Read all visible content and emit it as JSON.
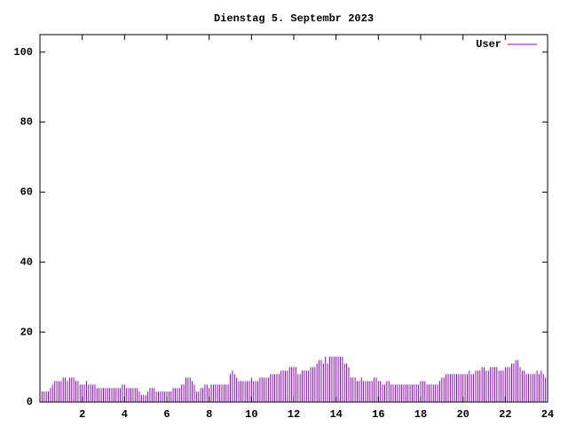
{
  "chart_data": {
    "type": "impulses",
    "title": "Dienstag 5. Septembr 2023",
    "xlim": [
      0,
      24
    ],
    "xticks": [
      2,
      4,
      6,
      8,
      10,
      12,
      14,
      16,
      18,
      20,
      22,
      24
    ],
    "ylim": [
      0,
      105
    ],
    "yticks": [
      0,
      20,
      40,
      60,
      80,
      100
    ],
    "legend": "top-right",
    "series": [
      {
        "name": "User",
        "color": "#9400d3",
        "x": [
          0,
          0.1,
          0.2,
          0.3,
          0.4,
          0.5,
          0.6,
          0.7,
          0.8,
          0.9,
          1,
          1.1,
          1.2,
          1.3,
          1.4,
          1.5,
          1.6,
          1.7,
          1.8,
          1.9,
          2,
          2.1,
          2.2,
          2.3,
          2.4,
          2.5,
          2.6,
          2.7,
          2.8,
          2.9,
          3,
          3.1,
          3.2,
          3.3,
          3.4,
          3.5,
          3.6,
          3.7,
          3.8,
          3.9,
          4,
          4.1,
          4.2,
          4.3,
          4.4,
          4.5,
          4.6,
          4.7,
          4.8,
          4.9,
          5,
          5.1,
          5.2,
          5.3,
          5.4,
          5.5,
          5.6,
          5.7,
          5.8,
          5.9,
          6,
          6.1,
          6.2,
          6.3,
          6.4,
          6.5,
          6.6,
          6.7,
          6.8,
          6.9,
          7,
          7.1,
          7.2,
          7.3,
          7.4,
          7.5,
          7.6,
          7.7,
          7.8,
          7.9,
          8,
          8.1,
          8.2,
          8.3,
          8.4,
          8.5,
          8.6,
          8.7,
          8.8,
          8.9,
          9,
          9.1,
          9.2,
          9.3,
          9.4,
          9.5,
          9.6,
          9.7,
          9.8,
          9.9,
          10,
          10.1,
          10.2,
          10.3,
          10.4,
          10.5,
          10.6,
          10.7,
          10.8,
          10.9,
          11,
          11.1,
          11.2,
          11.3,
          11.4,
          11.5,
          11.6,
          11.7,
          11.8,
          11.9,
          12,
          12.1,
          12.2,
          12.3,
          12.4,
          12.5,
          12.6,
          12.7,
          12.8,
          12.9,
          13,
          13.1,
          13.2,
          13.3,
          13.4,
          13.5,
          13.6,
          13.7,
          13.8,
          13.9,
          14,
          14.1,
          14.2,
          14.3,
          14.4,
          14.5,
          14.6,
          14.7,
          14.8,
          14.9,
          15,
          15.1,
          15.2,
          15.3,
          15.4,
          15.5,
          15.6,
          15.7,
          15.8,
          15.9,
          16,
          16.1,
          16.2,
          16.3,
          16.4,
          16.5,
          16.6,
          16.7,
          16.8,
          16.9,
          17,
          17.1,
          17.2,
          17.3,
          17.4,
          17.5,
          17.6,
          17.7,
          17.8,
          17.9,
          18,
          18.1,
          18.2,
          18.3,
          18.4,
          18.5,
          18.6,
          18.7,
          18.8,
          18.9,
          19,
          19.1,
          19.2,
          19.3,
          19.4,
          19.5,
          19.6,
          19.7,
          19.8,
          19.9,
          20,
          20.1,
          20.2,
          20.3,
          20.4,
          20.5,
          20.6,
          20.7,
          20.8,
          20.9,
          21,
          21.1,
          21.2,
          21.3,
          21.4,
          21.5,
          21.6,
          21.7,
          21.8,
          21.9,
          22,
          22.1,
          22.2,
          22.3,
          22.4,
          22.5,
          22.6,
          22.7,
          22.8,
          22.9,
          23,
          23.1,
          23.2,
          23.3,
          23.4,
          23.5,
          23.6,
          23.7,
          23.8,
          23.9
        ],
        "values": [
          3,
          3,
          3,
          3,
          3,
          4,
          5,
          6,
          6,
          6,
          6,
          7,
          7,
          6,
          7,
          7,
          7,
          6,
          6,
          5,
          5,
          5,
          6,
          5,
          5,
          5,
          5,
          4,
          4,
          4,
          4,
          4,
          4,
          4,
          4,
          4,
          4,
          4,
          4,
          5,
          5,
          4,
          4,
          4,
          4,
          4,
          4,
          3,
          2,
          2,
          2,
          3,
          4,
          4,
          4,
          3,
          3,
          3,
          3,
          3,
          3,
          3,
          3,
          4,
          4,
          4,
          4,
          5,
          5,
          7,
          7,
          7,
          6,
          5,
          3,
          3,
          4,
          4,
          5,
          5,
          4,
          5,
          5,
          5,
          5,
          5,
          5,
          5,
          5,
          5,
          8,
          9,
          8,
          7,
          6,
          6,
          6,
          6,
          6,
          6,
          7,
          6,
          6,
          6,
          7,
          7,
          7,
          7,
          7,
          8,
          8,
          8,
          8,
          8,
          9,
          9,
          9,
          9,
          10,
          10,
          10,
          10,
          8,
          8,
          9,
          9,
          9,
          9,
          10,
          10,
          10,
          11,
          12,
          12,
          11,
          13,
          11,
          13,
          13,
          13,
          13,
          13,
          13,
          13,
          11,
          11,
          10,
          7,
          7,
          7,
          6,
          6,
          7,
          6,
          6,
          6,
          6,
          6,
          7,
          7,
          6,
          6,
          5,
          5,
          6,
          6,
          5,
          5,
          5,
          5,
          5,
          5,
          5,
          5,
          5,
          5,
          5,
          5,
          5,
          5,
          6,
          6,
          6,
          5,
          5,
          5,
          5,
          5,
          5,
          6,
          7,
          7,
          8,
          8,
          8,
          8,
          8,
          8,
          8,
          8,
          8,
          8,
          8,
          9,
          8,
          8,
          9,
          9,
          9,
          10,
          10,
          9,
          9,
          10,
          10,
          10,
          10,
          9,
          9,
          9,
          10,
          10,
          10,
          11,
          11,
          12,
          12,
          10,
          9,
          9,
          8,
          8,
          8,
          8,
          8,
          9,
          8,
          9,
          8,
          7
        ]
      }
    ]
  }
}
